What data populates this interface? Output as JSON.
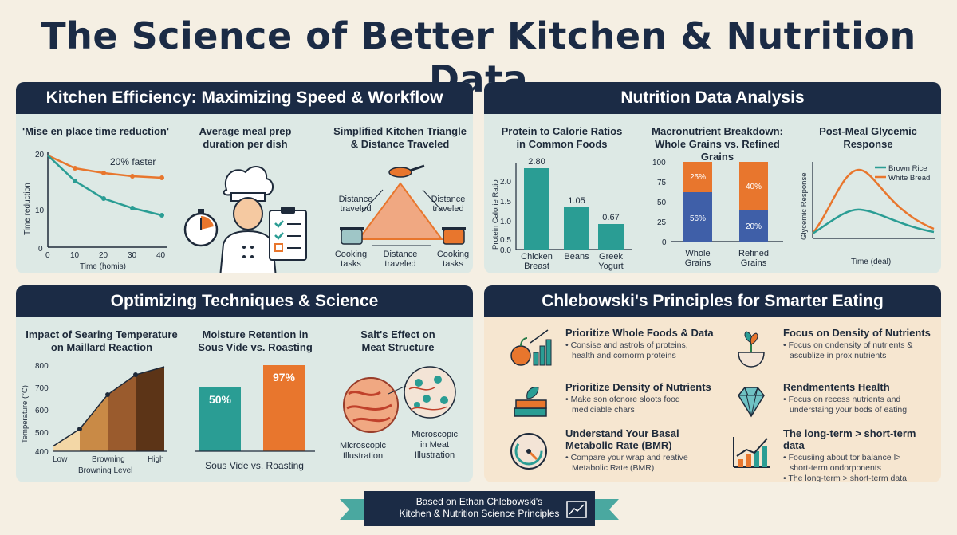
{
  "title": "The Science of Better Kitchen & Nutrition Data",
  "panels": {
    "efficiency": {
      "header": "Kitchen Efficiency: Maximizing Speed & Workflow",
      "mise": {
        "title": "'Mise en place time reduction'",
        "annotation": "20% faster",
        "ylabel": "Time reduction",
        "xlabel": "Time (homis)",
        "yticks": [
          "20",
          "10",
          "0"
        ],
        "xticks": [
          "0",
          "10",
          "20",
          "30",
          "40"
        ]
      },
      "prep": {
        "title_line1": "Average meal prep",
        "title_line2": "duration per dish"
      },
      "triangle": {
        "title_line1": "Simplified Kitchen Triangle",
        "title_line2": "& Distance Traveled",
        "label_left_1": "Distance",
        "label_left_2": "traveled",
        "label_right_1": "Distance",
        "label_right_2": "traveled",
        "label_bottom_1": "Distance",
        "label_bottom_2": "traveled",
        "cook_left_1": "Cooking",
        "cook_left_2": "tasks",
        "cook_right_1": "Cooking",
        "cook_right_2": "tasks"
      }
    },
    "nutrition": {
      "header": "Nutrition Data Analysis",
      "protein": {
        "title_line1": "Protein to Calorie Ratios",
        "title_line2": "in Common Foods",
        "ylabel": "Protein Calorie Ratio",
        "yticks": [
          "2.0",
          "1.5",
          "1.0",
          "0.5",
          "0.0"
        ],
        "bars": [
          {
            "label1": "Chicken",
            "label2": "Breast",
            "value": "2.80"
          },
          {
            "label1": "Beans",
            "label2": "",
            "value": "1.05"
          },
          {
            "label1": "Greek",
            "label2": "Yogurt",
            "value": "0.67"
          }
        ]
      },
      "macro": {
        "title_line1": "Macronutrient Breakdown:",
        "title_line2": "Whole Grains vs. Refined Grains",
        "yticks": [
          "100",
          "75",
          "50",
          "25",
          "0"
        ],
        "bars": [
          {
            "label1": "Whole",
            "label2": "Grains",
            "top": "25%",
            "bottom": "56%"
          },
          {
            "label1": "Refined",
            "label2": "Grains",
            "top": "40%",
            "bottom": "20%"
          }
        ]
      },
      "glycemic": {
        "title_line1": "Post-Meal Glycemic",
        "title_line2": "Response",
        "ylabel": "Glycemic Response",
        "xlabel": "Time (deal)",
        "legend1": "Brown Rice",
        "legend2": "White Bread"
      }
    },
    "techniques": {
      "header": "Optimizing Techniques & Science",
      "searing": {
        "title_line1": "Impact of Searing Temperature",
        "title_line2": "on Maillard Reaction",
        "ylabel": "Temperature (°C)",
        "xlabel": "Browning Level",
        "yticks": [
          "800",
          "700",
          "600",
          "500",
          "400"
        ],
        "xticks": [
          "Low",
          "Browning",
          "High"
        ]
      },
      "moisture": {
        "title_line1": "Moisture Retention in",
        "title_line2": "Sous Vide vs. Roasting",
        "bar1": "50%",
        "bar2": "97%",
        "xlabel": "Sous Vide vs.  Roasting"
      },
      "salt": {
        "title_line1": "Salt's Effect on",
        "title_line2": "Meat Structure",
        "cap_left_1": "Microscopic",
        "cap_left_2": "Illustration",
        "cap_right_1": "Microscopic",
        "cap_right_2": "in Meat",
        "cap_right_3": "Illustration"
      }
    },
    "principles": {
      "header": "Chlebowski's Principles for Smarter Eating",
      "items": [
        {
          "title": "Prioritize Whole Foods & Data",
          "desc1": "• Consise and astrols of proteins,",
          "desc2": "health and cornorm proteins"
        },
        {
          "title": "Focus on Density of Nutrients",
          "desc1": "• Focus on ondensity of nutrients &",
          "desc2": "ascublize in prox nutrients"
        },
        {
          "title": "Prioritize Density of Nutrients",
          "desc1": "• Make son ofcnore sloots food",
          "desc2": "mediciable chars"
        },
        {
          "title": "Rendmentents Health",
          "desc1": "• Focus on recess nutrients and",
          "desc2": "understaing your bods of eating"
        },
        {
          "title": "Understand Your Basal",
          "title2": "Metabolic Rate (BMR)",
          "desc1": "• Compare your wrap and reative",
          "desc2": "Metabolic Rate (BMR)"
        },
        {
          "title": "The long-term > short-term data",
          "desc1": "• Focusiing about tor balance I>",
          "desc2": "short-term ondorponents",
          "desc3": "• The long-term > short-term data"
        }
      ]
    }
  },
  "footer": {
    "line1": "Based on Ethan Chlebowski's",
    "line2": "Kitchen & Nutrition Science Principles"
  },
  "colors": {
    "navy": "#1b2b45",
    "teal": "#2a9d94",
    "orange": "#e8762d",
    "blue": "#3f5fa8"
  }
}
